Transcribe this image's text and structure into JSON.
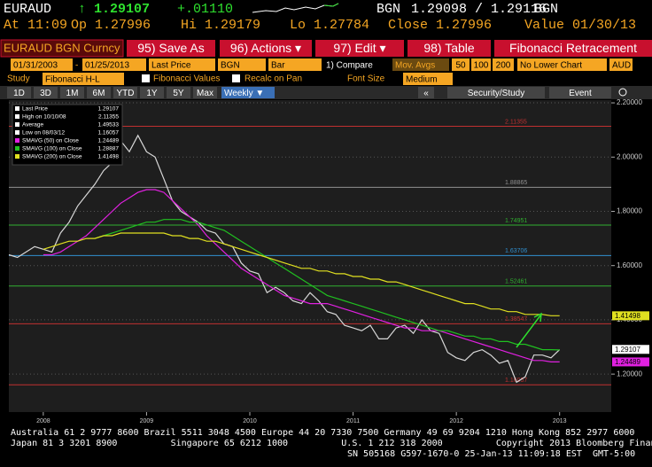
{
  "header": {
    "ticker": "EURAUD",
    "last": "↑ 1.29107",
    "change": "+.01110",
    "source1": "BGN",
    "bid_ask": "1.29098 / 1.29116",
    "source2": "BGN",
    "time": "At 11:09",
    "open": "Op 1.27996",
    "high": "Hi 1.29179",
    "low": "Lo 1.27784",
    "close": "Close 1.27996",
    "value": "Value 01/30/13"
  },
  "toolbar": {
    "security": "EURAUD BGN Curncy",
    "buttons": [
      "95) Save As",
      "96) Actions ▾",
      "97) Edit ▾",
      "98) Table"
    ],
    "study_title": "Fibonacci Retracement",
    "start": "01/31/2003",
    "dash": "-",
    "end": "01/25/2013",
    "field": "Last Price",
    "source": "BGN",
    "style": "Bar",
    "compare": "1) Compare",
    "mov_avgs": "Mov. Avgs",
    "ma_periods": [
      "50",
      "100",
      "200"
    ],
    "lower": "No Lower Chart",
    "currency": "AUD",
    "study_label": "Study",
    "study": "Fibonacci H-L",
    "fib_values": "Fibonacci Values",
    "recalc": "Recalc on Pan",
    "font_size_label": "Font Size",
    "font_size": "Medium",
    "periods": [
      "1D",
      "3D",
      "1M",
      "6M",
      "YTD",
      "1Y",
      "5Y",
      "Max"
    ],
    "frequency": "Weekly ▼",
    "collapse": "«",
    "security_study": "Security/Study",
    "event": "Event"
  },
  "chart_data": {
    "type": "line",
    "categories": [
      null,
      null,
      null,
      null,
      "2008",
      null,
      null,
      null,
      null,
      null,
      null,
      null,
      null,
      null,
      null,
      null,
      "2009",
      null,
      null,
      null,
      null,
      null,
      null,
      null,
      null,
      null,
      null,
      null,
      "2010",
      null,
      null,
      null,
      null,
      null,
      null,
      null,
      null,
      null,
      null,
      null,
      "2011",
      null,
      null,
      null,
      null,
      null,
      null,
      null,
      null,
      null,
      null,
      null,
      "2012",
      null,
      null,
      null,
      null,
      null,
      null,
      null,
      null,
      null,
      null,
      null,
      "2013",
      null,
      null,
      null,
      null,
      null
    ],
    "values": [
      1.64,
      1.63,
      1.65,
      1.67,
      1.66,
      1.65,
      1.72,
      1.76,
      1.82,
      1.86,
      1.9,
      1.95,
      1.98,
      2.06,
      2.02,
      2.08,
      2.02,
      2.0,
      1.92,
      1.84,
      1.8,
      1.78,
      1.76,
      1.73,
      1.72,
      1.68,
      1.67,
      1.61,
      1.58,
      1.57,
      1.5,
      1.52,
      1.5,
      1.47,
      1.46,
      1.5,
      1.47,
      1.43,
      1.42,
      1.38,
      1.37,
      1.36,
      1.38,
      1.33,
      1.33,
      1.37,
      1.38,
      1.35,
      1.4,
      1.36,
      1.35,
      1.28,
      1.26,
      1.25,
      1.28,
      1.29,
      1.27,
      1.24,
      1.25,
      1.17,
      1.19,
      1.27,
      1.27,
      1.26,
      1.29,
      null,
      null,
      null,
      null,
      null
    ],
    "color": "#d8d8d8",
    "series": [
      {
        "name": "SMAVG (50) on Close",
        "color": "#e020e0",
        "last": 1.24489,
        "values": [
          null,
          null,
          null,
          null,
          1.64,
          1.64,
          1.65,
          1.67,
          1.69,
          1.71,
          1.74,
          1.77,
          1.8,
          1.83,
          1.85,
          1.87,
          1.88,
          1.88,
          1.87,
          1.84,
          1.81,
          1.78,
          1.75,
          1.71,
          1.68,
          1.65,
          1.62,
          1.59,
          1.57,
          1.55,
          1.53,
          1.51,
          1.49,
          1.48,
          1.47,
          1.46,
          1.46,
          1.46,
          1.45,
          1.44,
          1.43,
          1.42,
          1.41,
          1.4,
          1.39,
          1.38,
          1.37,
          1.37,
          1.36,
          1.36,
          1.36,
          1.35,
          1.34,
          1.33,
          1.32,
          1.31,
          1.3,
          1.29,
          1.28,
          1.27,
          1.26,
          1.25,
          1.25,
          1.245,
          1.245,
          null,
          null,
          null,
          null,
          null
        ]
      },
      {
        "name": "SMAVG (100) on Close",
        "color": "#20c020",
        "last": 1.28887,
        "values": [
          null,
          null,
          null,
          null,
          null,
          null,
          null,
          null,
          null,
          null,
          1.7,
          1.71,
          1.72,
          1.73,
          1.74,
          1.75,
          1.76,
          1.76,
          1.77,
          1.77,
          1.77,
          1.76,
          1.76,
          1.75,
          1.74,
          1.73,
          1.71,
          1.69,
          1.67,
          1.65,
          1.63,
          1.61,
          1.59,
          1.57,
          1.55,
          1.53,
          1.51,
          1.49,
          1.48,
          1.47,
          1.46,
          1.45,
          1.44,
          1.43,
          1.42,
          1.41,
          1.4,
          1.39,
          1.38,
          1.37,
          1.36,
          1.36,
          1.35,
          1.34,
          1.34,
          1.33,
          1.33,
          1.32,
          1.32,
          1.31,
          1.31,
          1.3,
          1.29,
          1.29,
          1.289,
          null,
          null,
          null,
          null,
          null
        ]
      },
      {
        "name": "SMAVG (200) on Close",
        "color": "#e0e020",
        "last": 1.41498,
        "values": [
          null,
          null,
          null,
          null,
          1.66,
          1.67,
          1.68,
          1.69,
          1.69,
          1.7,
          1.7,
          1.71,
          1.71,
          1.72,
          1.72,
          1.72,
          1.72,
          1.72,
          1.72,
          1.71,
          1.71,
          1.7,
          1.7,
          1.69,
          1.69,
          1.68,
          1.67,
          1.66,
          1.65,
          1.64,
          1.63,
          1.62,
          1.61,
          1.6,
          1.59,
          1.59,
          1.58,
          1.58,
          1.57,
          1.57,
          1.56,
          1.56,
          1.55,
          1.55,
          1.54,
          1.54,
          1.53,
          1.52,
          1.51,
          1.5,
          1.49,
          1.48,
          1.47,
          1.46,
          1.46,
          1.45,
          1.44,
          1.44,
          1.43,
          1.43,
          1.42,
          1.42,
          1.42,
          1.415,
          1.415,
          null,
          null,
          null,
          null,
          null
        ]
      }
    ],
    "stats": [
      {
        "label": "Last Price",
        "value": 1.29107
      },
      {
        "label": "High on 10/10/08",
        "value": 2.11355
      },
      {
        "label": "Average",
        "value": 1.49533
      },
      {
        "label": "Low on 08/03/12",
        "value": 1.16057
      }
    ],
    "fib_levels": [
      2.11355,
      1.88865,
      1.74951,
      1.63706,
      1.52461,
      1.38547,
      1.16057
    ],
    "fib_colors": [
      "#c03030",
      "#909090",
      "#30b030",
      "#3090d0",
      "#30b030",
      "#c03030",
      "#c03030"
    ],
    "ylim": [
      1.06,
      2.21
    ],
    "yticks": [
      {
        "value": 1.2,
        "label": "1.20000"
      },
      {
        "value": 1.4,
        "label": "1.40000"
      },
      {
        "value": 1.6,
        "label": "1.60000"
      },
      {
        "value": 1.8,
        "label": "1.80000"
      },
      {
        "value": 2.0,
        "label": "2.00000"
      },
      {
        "value": 2.2,
        "label": "2.20000"
      }
    ],
    "grid": true
  },
  "footer": [
    "Australia 61 2 9777 8600 Brazil 5511 3048 4500 Europe 44 20 7330 7500 Germany 49 69 9204 1210 Hong Kong 852 2977 6000",
    "Japan 81 3 3201 8900          Singapore 65 6212 1000          U.S. 1 212 318 2000          Copyright 2013 Bloomberg Finance L.P.",
    "SN 505168 G597-1670-0 25-Jan-13 11:09:18 EST  GMT-5:00"
  ]
}
